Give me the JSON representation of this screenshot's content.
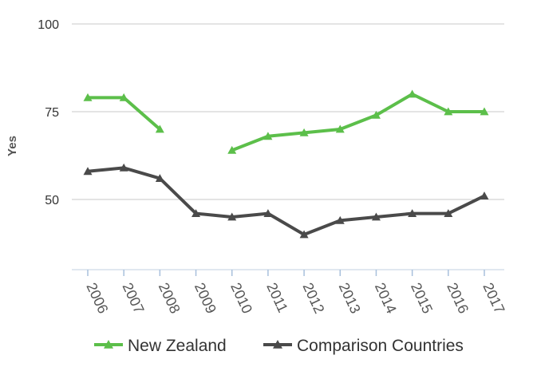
{
  "chart_data": {
    "type": "line",
    "ylabel": "Yes",
    "ylim": [
      30,
      100
    ],
    "yticks": [
      50,
      75,
      100
    ],
    "x": [
      "2006",
      "2007",
      "2008",
      "2009",
      "2010",
      "2011",
      "2012",
      "2013",
      "2014",
      "2015",
      "2016",
      "2017"
    ],
    "grid": true,
    "legend_placement": "bottom",
    "series": [
      {
        "name": "New Zealand",
        "color": "#5cbf4a",
        "marker": "triangle",
        "values": [
          79,
          79,
          70,
          null,
          64,
          68,
          69,
          70,
          74,
          80,
          75,
          75
        ]
      },
      {
        "name": "Comparison Countries",
        "color": "#4a4a4a",
        "marker": "triangle",
        "values": [
          58,
          59,
          56,
          46,
          45,
          46,
          40,
          44,
          45,
          46,
          46,
          51
        ]
      }
    ]
  }
}
